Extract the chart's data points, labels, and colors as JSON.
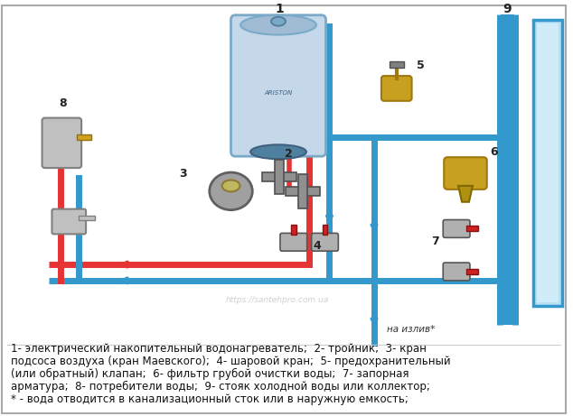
{
  "background_color": "#ffffff",
  "figsize": [
    6.34,
    4.61
  ],
  "dpi": 100,
  "caption_lines": [
    "1- электрический накопительный водонагреватель;  2- тройник;  3- кран",
    "подсоса воздуха (кран Маевского);  4- шаровой кран;  5- предохранительный",
    "(или обратный) клапан;  6- фильтр грубой очистки воды;  7- запорная",
    "арматура;  8- потребители воды;  9- стояк холодной воды или коллектор;",
    "* - вода отводится в канализационный сток или в наружную емкость;"
  ],
  "caption_fontsize": 8.5,
  "watermark": "https://santehpro.com.ua",
  "label_na_izliv": "на излив*",
  "hot_color": "#e63333",
  "cold_color": "#3399cc",
  "brass_color": "#c8a020",
  "boiler_face": "#c5d8ea",
  "boiler_edge": "#7aaac8"
}
